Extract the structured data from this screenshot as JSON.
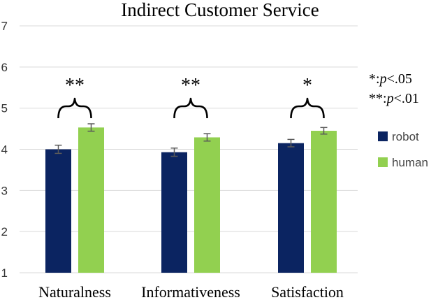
{
  "chart_data": {
    "type": "bar",
    "title": "Indirect Customer Service",
    "categories": [
      "Naturalness",
      "Informativeness",
      "Satisfaction"
    ],
    "ylim": [
      1,
      7
    ],
    "yticks": [
      "1",
      "2",
      "3",
      "4",
      "5",
      "6",
      "7"
    ],
    "grid": true,
    "legend_position": "right",
    "series": [
      {
        "name": "robot",
        "color": "#0b2461",
        "values": [
          4.0,
          3.93,
          4.15
        ],
        "errors": [
          0.1,
          0.1,
          0.09
        ]
      },
      {
        "name": "human",
        "color": "#92d050",
        "values": [
          4.53,
          4.29,
          4.45
        ],
        "errors": [
          0.09,
          0.09,
          0.08
        ]
      }
    ],
    "significance": [
      "**",
      "**",
      "*"
    ],
    "significance_legend": [
      {
        "stars": "*:",
        "p": "p",
        "threshold": "<.05"
      },
      {
        "stars": "**:",
        "p": "p",
        "threshold": "<.01"
      }
    ]
  }
}
